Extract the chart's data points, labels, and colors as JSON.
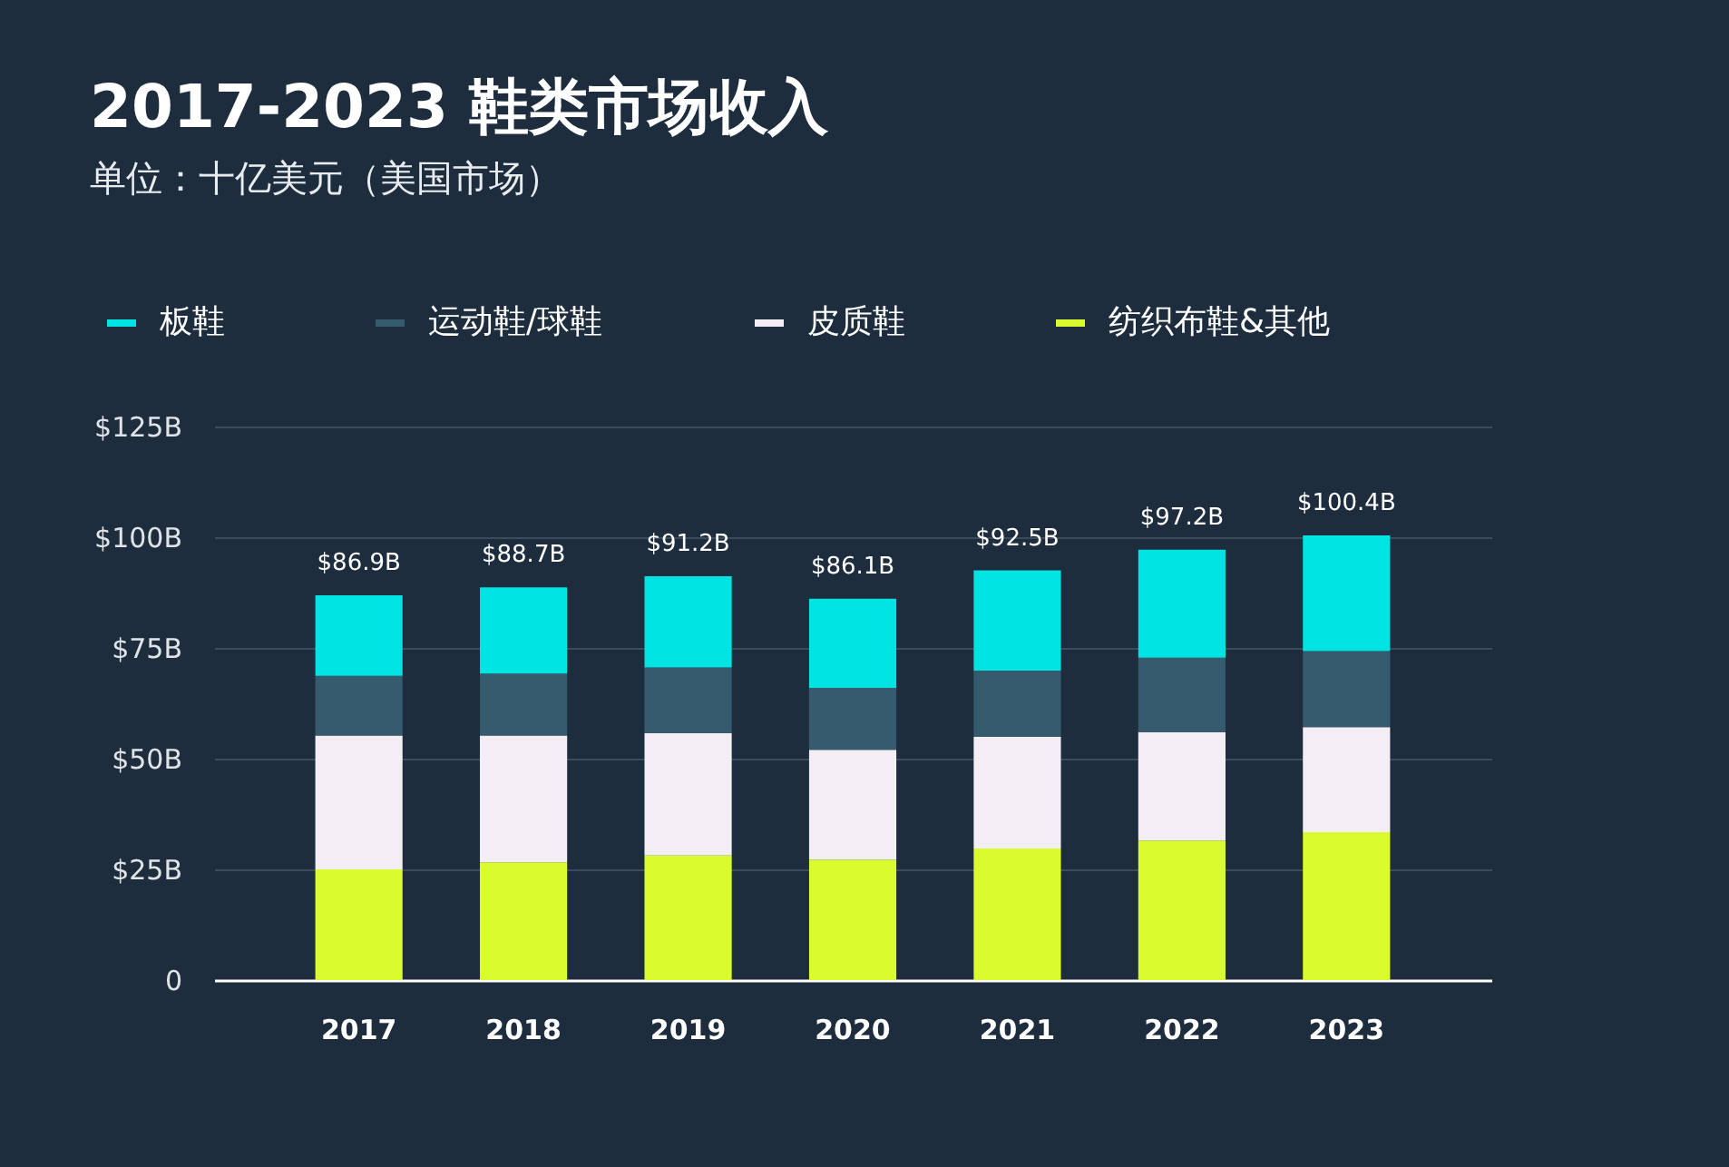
{
  "chart_data": {
    "type": "bar",
    "title": "2017-2023 鞋类市场收入",
    "subtitle": "单位：十亿美元（美国市场）",
    "categories": [
      "2017",
      "2018",
      "2019",
      "2020",
      "2021",
      "2022",
      "2023"
    ],
    "series": [
      {
        "name": "纺织布鞋&其他",
        "color": "#dafc2f",
        "values": [
          25.0,
          26.6,
          28.1,
          27.2,
          29.7,
          31.5,
          33.4
        ]
      },
      {
        "name": "皮质鞋",
        "color": "#f2eef3",
        "values": [
          30.2,
          28.6,
          27.7,
          24.8,
          25.2,
          24.5,
          23.7
        ]
      },
      {
        "name": "运动鞋/球鞋",
        "color": "#365b6e",
        "values": [
          13.5,
          14.0,
          14.8,
          14.0,
          15.0,
          16.8,
          17.2
        ]
      },
      {
        "name": "板鞋",
        "color": "#00e3e3",
        "values": [
          18.2,
          19.5,
          20.6,
          20.1,
          22.6,
          24.4,
          26.1
        ]
      }
    ],
    "stacked": true,
    "ylim": [
      0,
      125
    ],
    "yticks": [
      {
        "value": 0,
        "label": "0"
      },
      {
        "value": 25,
        "label": "$25B"
      },
      {
        "value": 50,
        "label": "$50B"
      },
      {
        "value": 75,
        "label": "$75B"
      },
      {
        "value": 100,
        "label": "$100B"
      },
      {
        "value": 125,
        "label": "$125B"
      }
    ],
    "grid": "y",
    "legend": "top",
    "totals": [
      "$86.9B",
      "$88.7B",
      "$91.2B",
      "$86.1B",
      "$92.5B",
      "$97.2B",
      "$100.4B"
    ]
  }
}
